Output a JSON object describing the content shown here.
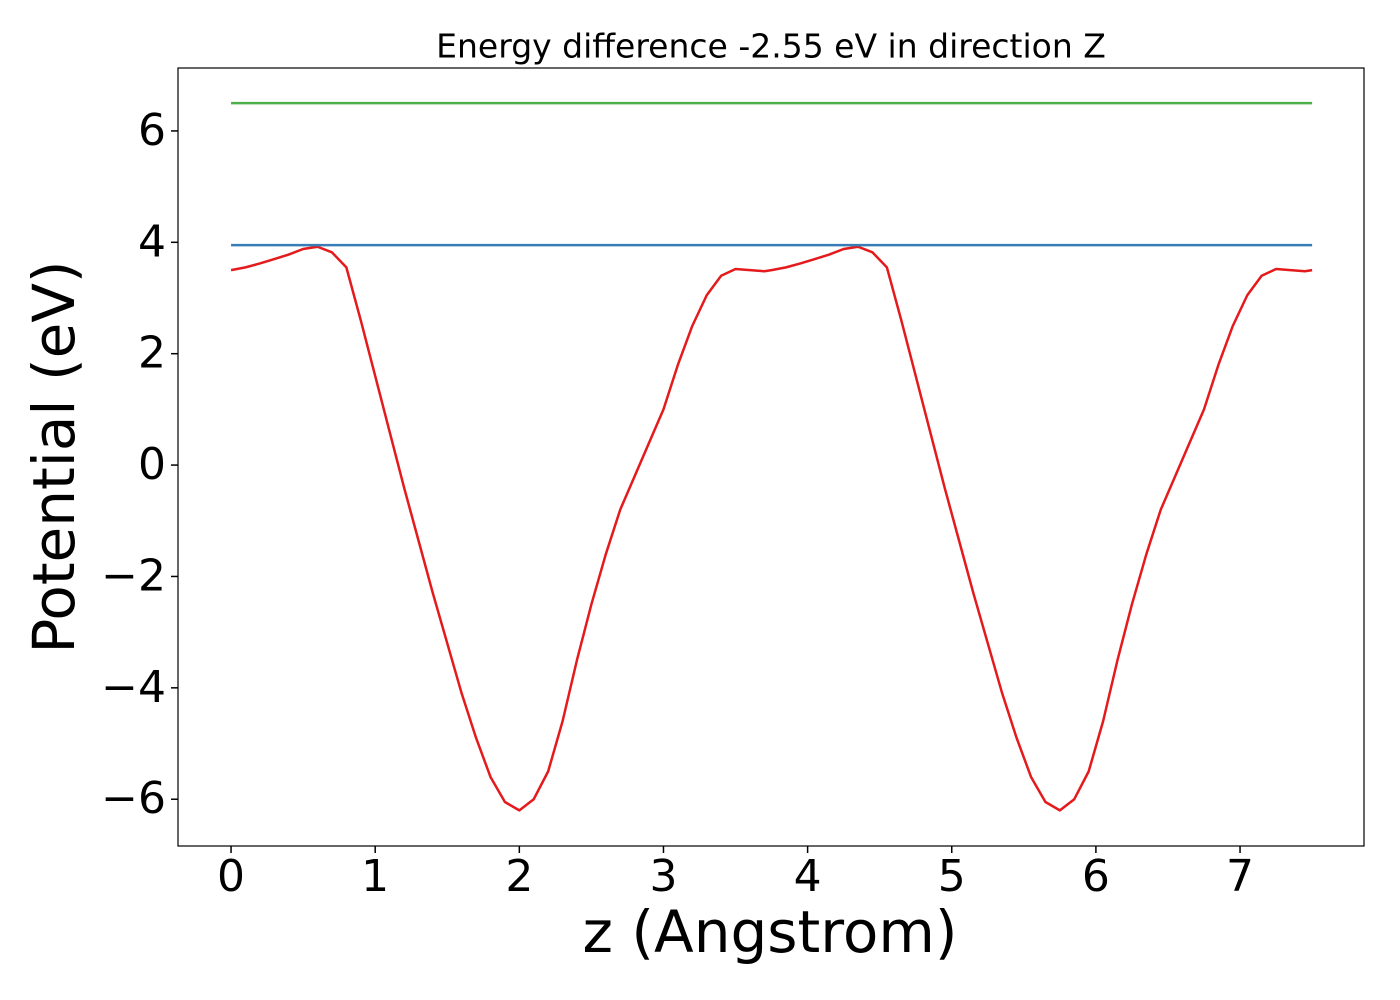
{
  "chart_data": {
    "type": "line",
    "title": "Energy difference -2.55 eV in direction Z",
    "x_label": "z (Angstrom)",
    "y_label": "Potential (eV)",
    "xlim": [
      -0.368,
      7.86
    ],
    "ylim": [
      -6.84,
      7.13
    ],
    "xticks": [
      0,
      1,
      2,
      3,
      4,
      5,
      6,
      7
    ],
    "yticks": [
      {
        "value": -6,
        "label": "−6"
      },
      {
        "value": -4,
        "label": "−4"
      },
      {
        "value": -2,
        "label": "−2"
      },
      0,
      2,
      4,
      6
    ],
    "series": [
      {
        "color": "#e41a1c",
        "x": [
          0,
          0.1,
          0.2,
          0.3,
          0.4,
          0.5,
          0.6,
          0.7,
          0.8,
          0.9,
          1.0,
          1.1,
          1.2,
          1.3,
          1.4,
          1.5,
          1.6,
          1.7,
          1.8,
          1.9,
          2.0,
          2.1,
          2.2,
          2.3,
          2.4,
          2.5,
          2.6,
          2.7,
          2.8,
          2.9,
          3.0,
          3.1,
          3.2,
          3.3,
          3.4,
          3.5,
          3.6,
          3.7,
          3.75,
          3.85,
          3.95,
          4.05,
          4.15,
          4.25,
          4.35,
          4.45,
          4.55,
          4.65,
          4.75,
          4.85,
          4.95,
          5.05,
          5.15,
          5.25,
          5.35,
          5.45,
          5.55,
          5.65,
          5.75,
          5.85,
          5.95,
          6.05,
          6.15,
          6.25,
          6.35,
          6.45,
          6.55,
          6.65,
          6.75,
          6.85,
          6.95,
          7.05,
          7.15,
          7.25,
          7.35,
          7.45,
          7.5
        ],
        "values": [
          3.5,
          3.55,
          3.62,
          3.7,
          3.78,
          3.88,
          3.92,
          3.82,
          3.55,
          2.6,
          1.6,
          0.6,
          -0.4,
          -1.35,
          -2.3,
          -3.2,
          -4.1,
          -4.9,
          -5.6,
          -6.05,
          -6.2,
          -6.0,
          -5.5,
          -4.6,
          -3.5,
          -2.5,
          -1.6,
          -0.8,
          -0.2,
          0.4,
          1.0,
          1.8,
          2.5,
          3.05,
          3.4,
          3.52,
          3.5,
          3.48,
          3.5,
          3.55,
          3.62,
          3.7,
          3.78,
          3.88,
          3.92,
          3.82,
          3.55,
          2.6,
          1.6,
          0.6,
          -0.4,
          -1.35,
          -2.3,
          -3.2,
          -4.1,
          -4.9,
          -5.6,
          -6.05,
          -6.2,
          -6.0,
          -5.5,
          -4.6,
          -3.5,
          -2.5,
          -1.6,
          -0.8,
          -0.2,
          0.4,
          1.0,
          1.8,
          2.5,
          3.05,
          3.4,
          3.52,
          3.5,
          3.48,
          3.5
        ]
      },
      {
        "color": "#377eb8",
        "x": [
          0,
          7.5
        ],
        "values": [
          3.95,
          3.95
        ]
      },
      {
        "color": "#4daf4a",
        "x": [
          0,
          7.5
        ],
        "values": [
          6.5,
          6.5
        ]
      }
    ]
  }
}
